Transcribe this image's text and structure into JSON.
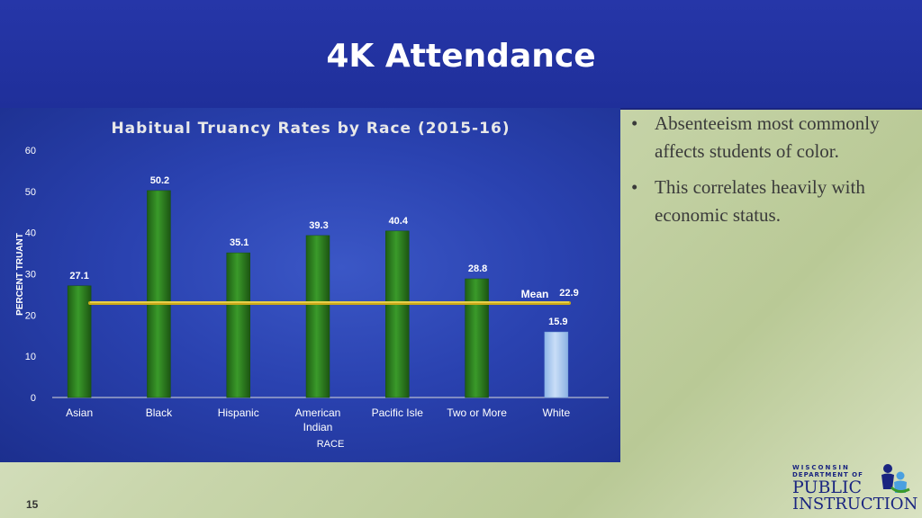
{
  "slide": {
    "title": "4K Attendance",
    "page_number": "15"
  },
  "bullets": [
    {
      "marker": "•",
      "text": "Absenteeism most commonly affects students of color."
    },
    {
      "marker": "•",
      "text": "This correlates heavily with economic status."
    }
  ],
  "logo": {
    "line1": "WISCONSIN",
    "line2": "DEPARTMENT OF",
    "line3": "PUBLIC",
    "line4": "INSTRUCTION"
  },
  "colors": {
    "title_bar": "#2636a8",
    "bar_color_students_of_color": "#2e7d1f",
    "bar_color_white": "#a9c9f0",
    "mean_line": "#e0c020"
  },
  "chart_data": {
    "type": "bar",
    "title": "Habitual Truancy Rates by Race (2015-16)",
    "xlabel": "RACE",
    "ylabel": "PERCENT TRUANT",
    "ylim": [
      0,
      60
    ],
    "yticks": [
      0,
      10,
      20,
      30,
      40,
      50,
      60
    ],
    "grid": false,
    "categories": [
      [
        "Asian"
      ],
      [
        "Black"
      ],
      [
        "Hispanic"
      ],
      [
        "American",
        "Indian"
      ],
      [
        "Pacific Isle"
      ],
      [
        "Two or More"
      ],
      [
        "White"
      ]
    ],
    "values": [
      27.1,
      50.2,
      35.1,
      39.3,
      40.4,
      28.8,
      15.9
    ],
    "data_labels": [
      "27.1",
      "50.2",
      "35.1",
      "39.3",
      "40.4",
      "28.8",
      "15.9"
    ],
    "mean": {
      "label": "Mean",
      "value": 22.9,
      "value_label": "22.9"
    }
  }
}
